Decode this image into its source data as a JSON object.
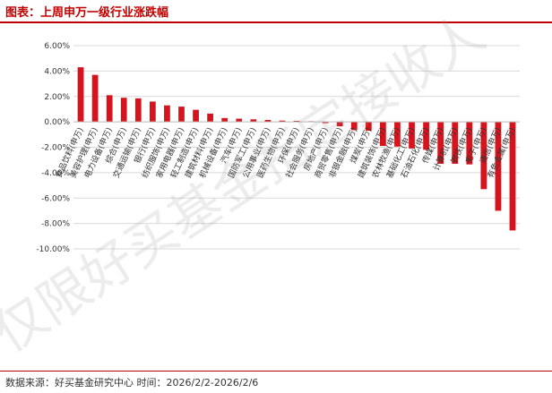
{
  "header": {
    "title": "图表：上周申万一级行业涨跌幅"
  },
  "footer": {
    "source": "数据来源：好买基金研究中心 时间：2026/2/2-2026/2/6"
  },
  "watermark": {
    "text": "仅限好买基金指定接收人"
  },
  "chart_data": {
    "type": "bar",
    "title": "",
    "xlabel": "",
    "ylabel": "",
    "ylim": [
      -10,
      6
    ],
    "yticks": [
      "6.00%",
      "4.00%",
      "2.00%",
      "0.00%",
      "-2.00%",
      "-4.00%",
      "-6.00%",
      "-8.00%",
      "-10.00%"
    ],
    "grid": true,
    "bar_color": "#d7141e",
    "categories": [
      "食品饮料(申万)",
      "美容护理(申万)",
      "电力设备(申万)",
      "综合(申万)",
      "交通运输(申万)",
      "银行(申万)",
      "纺织服饰(申万)",
      "家用电器(申万)",
      "轻工制造(申万)",
      "建筑材料(申万)",
      "机械设备(申万)",
      "汽车(申万)",
      "国防军工(申万)",
      "公用事业(申万)",
      "医药生物(申万)",
      "环保(申万)",
      "社会服务(申万)",
      "房地产(申万)",
      "商贸零售(申万)",
      "非银金融(申万)",
      "煤炭(申万)",
      "建筑装饰(申万)",
      "农林牧渔(申万)",
      "基础化工(申万)",
      "石油石化(申万)",
      "传媒(申万)",
      "计算机(申万)",
      "钢铁(申万)",
      "电子(申万)",
      "通信(申万)",
      "有色金属(申万)"
    ],
    "values": [
      4.3,
      3.7,
      2.1,
      1.9,
      1.85,
      1.6,
      1.3,
      1.2,
      0.95,
      0.65,
      0.3,
      0.25,
      0.2,
      0.15,
      0.1,
      0.08,
      0.05,
      -0.1,
      -0.35,
      -0.65,
      -0.7,
      -1.9,
      -1.95,
      -2.1,
      -2.2,
      -3.3,
      -3.3,
      -3.35,
      -5.3,
      -7.0,
      -8.55
    ]
  }
}
